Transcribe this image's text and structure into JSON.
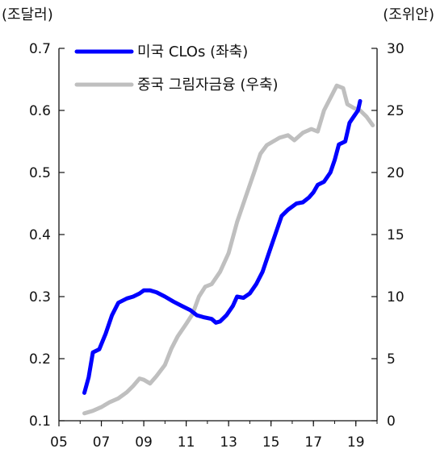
{
  "chart_data": {
    "type": "line",
    "left_unit": "(조달러)",
    "right_unit": "(조위안)",
    "x_ticks": [
      "05",
      "07",
      "09",
      "11",
      "13",
      "15",
      "17",
      "19"
    ],
    "y_left_ticks": [
      "0.1",
      "0.2",
      "0.3",
      "0.4",
      "0.5",
      "0.6",
      "0.7"
    ],
    "y_right_ticks": [
      "0",
      "5",
      "10",
      "15",
      "20",
      "25",
      "30"
    ],
    "xlim": [
      2005.0,
      2020.0
    ],
    "ylim_left": [
      0.1,
      0.7
    ],
    "ylim_right": [
      0,
      30
    ],
    "legend_position": "top-left",
    "series": [
      {
        "name": "미국 CLOs (좌축)",
        "axis": "left",
        "color": "#0000ff",
        "points": [
          [
            2006.2,
            0.145
          ],
          [
            2006.4,
            0.17
          ],
          [
            2006.6,
            0.21
          ],
          [
            2006.9,
            0.215
          ],
          [
            2007.2,
            0.24
          ],
          [
            2007.5,
            0.27
          ],
          [
            2007.8,
            0.29
          ],
          [
            2008.2,
            0.297
          ],
          [
            2008.5,
            0.3
          ],
          [
            2008.8,
            0.305
          ],
          [
            2009.0,
            0.31
          ],
          [
            2009.3,
            0.31
          ],
          [
            2009.6,
            0.307
          ],
          [
            2010.0,
            0.3
          ],
          [
            2010.4,
            0.292
          ],
          [
            2010.8,
            0.285
          ],
          [
            2011.2,
            0.278
          ],
          [
            2011.5,
            0.27
          ],
          [
            2011.8,
            0.267
          ],
          [
            2012.2,
            0.264
          ],
          [
            2012.4,
            0.258
          ],
          [
            2012.6,
            0.26
          ],
          [
            2012.9,
            0.27
          ],
          [
            2013.2,
            0.285
          ],
          [
            2013.4,
            0.3
          ],
          [
            2013.7,
            0.298
          ],
          [
            2014.0,
            0.305
          ],
          [
            2014.3,
            0.32
          ],
          [
            2014.6,
            0.34
          ],
          [
            2014.9,
            0.37
          ],
          [
            2015.2,
            0.4
          ],
          [
            2015.5,
            0.43
          ],
          [
            2015.8,
            0.44
          ],
          [
            2016.2,
            0.45
          ],
          [
            2016.5,
            0.452
          ],
          [
            2016.8,
            0.46
          ],
          [
            2017.0,
            0.468
          ],
          [
            2017.2,
            0.48
          ],
          [
            2017.5,
            0.485
          ],
          [
            2017.8,
            0.5
          ],
          [
            2018.0,
            0.52
          ],
          [
            2018.2,
            0.545
          ],
          [
            2018.5,
            0.55
          ],
          [
            2018.7,
            0.58
          ],
          [
            2018.9,
            0.59
          ],
          [
            2019.1,
            0.6
          ],
          [
            2019.2,
            0.615
          ]
        ]
      },
      {
        "name": "중국 그림자금융 (우축)",
        "axis": "right",
        "color": "#bfbfbf",
        "points": [
          [
            2006.2,
            0.6
          ],
          [
            2006.6,
            0.8
          ],
          [
            2007.0,
            1.1
          ],
          [
            2007.4,
            1.5
          ],
          [
            2007.8,
            1.8
          ],
          [
            2008.2,
            2.3
          ],
          [
            2008.5,
            2.8
          ],
          [
            2008.8,
            3.4
          ],
          [
            2009.0,
            3.3
          ],
          [
            2009.3,
            3.0
          ],
          [
            2009.6,
            3.6
          ],
          [
            2010.0,
            4.5
          ],
          [
            2010.3,
            5.8
          ],
          [
            2010.6,
            6.8
          ],
          [
            2011.0,
            7.8
          ],
          [
            2011.3,
            8.6
          ],
          [
            2011.6,
            10.0
          ],
          [
            2011.9,
            10.8
          ],
          [
            2012.2,
            11.0
          ],
          [
            2012.6,
            12.0
          ],
          [
            2013.0,
            13.5
          ],
          [
            2013.4,
            16.0
          ],
          [
            2013.8,
            18.0
          ],
          [
            2014.2,
            20.0
          ],
          [
            2014.5,
            21.5
          ],
          [
            2014.8,
            22.2
          ],
          [
            2015.1,
            22.5
          ],
          [
            2015.4,
            22.8
          ],
          [
            2015.8,
            23.0
          ],
          [
            2016.1,
            22.6
          ],
          [
            2016.5,
            23.2
          ],
          [
            2016.9,
            23.5
          ],
          [
            2017.2,
            23.3
          ],
          [
            2017.5,
            25.0
          ],
          [
            2017.8,
            26.0
          ],
          [
            2018.1,
            27.0
          ],
          [
            2018.4,
            26.8
          ],
          [
            2018.6,
            25.5
          ],
          [
            2018.9,
            25.2
          ],
          [
            2019.2,
            25.0
          ],
          [
            2019.5,
            24.5
          ],
          [
            2019.8,
            23.8
          ]
        ]
      }
    ]
  }
}
